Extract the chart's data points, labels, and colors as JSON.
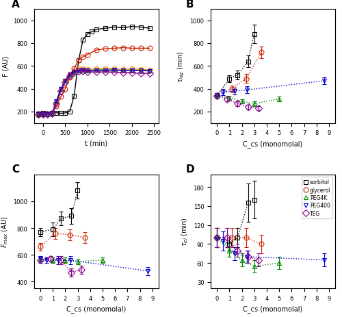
{
  "panel_A": {
    "title": "A",
    "xlabel": "t (min)",
    "ylabel": "F (AU)",
    "xlim": [
      -200,
      2600
    ],
    "ylim": [
      100,
      1100
    ],
    "yticks": [
      200,
      400,
      600,
      800,
      1000
    ],
    "series": {
      "sorbitol": {
        "color": "#000000",
        "marker": "s",
        "t": [
          -100,
          0,
          100,
          200,
          300,
          400,
          500,
          600,
          700,
          800,
          900,
          1000,
          1100,
          1200,
          1400,
          1600,
          1800,
          2000,
          2200,
          2400
        ],
        "F": [
          180,
          185,
          183,
          185,
          190,
          185,
          188,
          200,
          340,
          650,
          830,
          880,
          900,
          920,
          930,
          940,
          935,
          945,
          940,
          930
        ]
      },
      "glycerol": {
        "color": "#cc2200",
        "marker": "o",
        "t": [
          -100,
          0,
          100,
          200,
          300,
          400,
          500,
          600,
          700,
          800,
          900,
          1000,
          1200,
          1400,
          1600,
          1800,
          2000,
          2200,
          2400
        ],
        "F": [
          170,
          175,
          175,
          180,
          250,
          330,
          400,
          500,
          580,
          650,
          680,
          700,
          740,
          750,
          755,
          760,
          755,
          755,
          755
        ]
      },
      "orange": {
        "color": "#ff8800",
        "marker": "h",
        "t": [
          -100,
          0,
          100,
          200,
          300,
          400,
          500,
          600,
          700,
          800,
          900,
          1000,
          1200,
          1400,
          1600,
          1800,
          2000,
          2200,
          2400
        ],
        "F": [
          175,
          175,
          175,
          180,
          280,
          390,
          470,
          530,
          560,
          575,
          580,
          570,
          575,
          575,
          575,
          570,
          575,
          570,
          565
        ]
      },
      "PEG4000": {
        "color": "#008800",
        "marker": "^",
        "t": [
          -100,
          0,
          100,
          200,
          300,
          400,
          500,
          600,
          700,
          800,
          900,
          1000,
          1200,
          1400,
          1600,
          1800,
          2000,
          2200,
          2400
        ],
        "F": [
          175,
          175,
          175,
          180,
          290,
          400,
          470,
          520,
          550,
          560,
          560,
          560,
          565,
          565,
          565,
          560,
          565,
          560,
          560
        ]
      },
      "PEG400": {
        "color": "#0000cc",
        "marker": "v",
        "t": [
          -100,
          0,
          100,
          200,
          300,
          400,
          500,
          600,
          700,
          800,
          900,
          1000,
          1200,
          1400,
          1600,
          1800,
          2000,
          2200,
          2400
        ],
        "F": [
          175,
          175,
          175,
          180,
          290,
          400,
          470,
          525,
          550,
          560,
          565,
          560,
          560,
          560,
          565,
          560,
          560,
          560,
          555
        ]
      },
      "TEG": {
        "color": "#880088",
        "marker": "D",
        "t": [
          -100,
          0,
          100,
          200,
          300,
          400,
          500,
          600,
          700,
          800,
          900,
          1000,
          1200,
          1400,
          1600,
          1800,
          2000,
          2200,
          2400
        ],
        "F": [
          175,
          175,
          175,
          180,
          270,
          380,
          460,
          510,
          540,
          555,
          555,
          550,
          545,
          548,
          545,
          540,
          540,
          535,
          535
        ]
      }
    }
  },
  "panel_B": {
    "title": "B",
    "xlabel": "C_cs (monomolal)",
    "ylabel": "τ_lag (min)",
    "xlim": [
      -0.5,
      9.5
    ],
    "ylim": [
      100,
      1100
    ],
    "yticks": [
      200,
      400,
      600,
      800,
      1000
    ],
    "xticks": [
      0,
      1,
      2,
      3,
      4,
      5,
      6,
      7,
      8,
      9
    ],
    "series": {
      "sorbitol": {
        "color": "#000000",
        "marker": "s",
        "x": [
          0,
          1,
          1.66,
          2.49,
          2.99
        ],
        "y": [
          340,
          490,
          520,
          640,
          880
        ],
        "yerr": [
          20,
          30,
          40,
          50,
          80
        ]
      },
      "glycerol": {
        "color": "#cc2200",
        "marker": "o",
        "x": [
          0,
          1.19,
          2.37,
          3.56
        ],
        "y": [
          340,
          400,
          490,
          720
        ],
        "yerr": [
          20,
          30,
          40,
          50
        ]
      },
      "PEG4000": {
        "color": "#008800",
        "marker": "^",
        "x": [
          0,
          1,
          2,
          3,
          5
        ],
        "y": [
          340,
          320,
          290,
          270,
          310
        ],
        "yerr": [
          20,
          20,
          20,
          20,
          20
        ]
      },
      "PEG400": {
        "color": "#0000cc",
        "marker": "v",
        "x": [
          0,
          0.48,
          1.44,
          2.4,
          8.64
        ],
        "y": [
          340,
          370,
          380,
          390,
          470
        ],
        "yerr": [
          20,
          25,
          30,
          30,
          30
        ]
      },
      "TEG": {
        "color": "#880088",
        "marker": "D",
        "x": [
          0,
          0.83,
          1.66,
          2.49,
          3.32
        ],
        "y": [
          340,
          310,
          270,
          240,
          230
        ],
        "yerr": [
          20,
          20,
          20,
          20,
          20
        ]
      }
    }
  },
  "panel_C": {
    "title": "C",
    "xlabel": "C_cs (monomolal)",
    "ylabel": "F_max (AU)",
    "xlim": [
      -0.5,
      9.5
    ],
    "ylim": [
      350,
      1200
    ],
    "yticks": [
      400,
      600,
      800,
      1000
    ],
    "xticks": [
      0,
      1,
      2,
      3,
      4,
      5,
      6,
      7,
      8,
      9
    ],
    "series": {
      "sorbitol": {
        "color": "#000000",
        "marker": "s",
        "x": [
          0,
          1,
          1.66,
          2.49,
          2.99
        ],
        "y": [
          770,
          790,
          870,
          890,
          1080
        ],
        "yerr": [
          30,
          50,
          50,
          60,
          60
        ]
      },
      "glycerol": {
        "color": "#cc2200",
        "marker": "o",
        "x": [
          0,
          1.19,
          2.37,
          3.56
        ],
        "y": [
          660,
          760,
          750,
          730
        ],
        "yerr": [
          30,
          40,
          40,
          40
        ]
      },
      "PEG4000": {
        "color": "#008800",
        "marker": "^",
        "x": [
          0,
          1,
          2,
          3,
          5
        ],
        "y": [
          570,
          560,
          560,
          550,
          560
        ],
        "yerr": [
          20,
          20,
          20,
          20,
          20
        ]
      },
      "PEG400": {
        "color": "#0000cc",
        "marker": "v",
        "x": [
          0,
          0.48,
          1.44,
          2.4,
          8.64
        ],
        "y": [
          570,
          560,
          560,
          560,
          480
        ],
        "yerr": [
          20,
          20,
          30,
          30,
          30
        ]
      },
      "TEG": {
        "color": "#880088",
        "marker": "D",
        "x": [
          0,
          0.83,
          1.66,
          2.49,
          3.32
        ],
        "y": [
          560,
          570,
          560,
          470,
          490
        ],
        "yerr": [
          20,
          20,
          30,
          30,
          30
        ]
      }
    }
  },
  "panel_D": {
    "title": "D",
    "xlabel": "C_cs (monomolal)",
    "ylabel": "τ_el (min)",
    "xlim": [
      -0.5,
      9.5
    ],
    "ylim": [
      20,
      200
    ],
    "yticks": [
      30,
      60,
      90,
      120,
      150,
      180
    ],
    "xticks": [
      0,
      1,
      2,
      3,
      4,
      5,
      6,
      7,
      8,
      9
    ],
    "series": {
      "sorbitol": {
        "color": "#000000",
        "marker": "s",
        "x": [
          0,
          1,
          1.66,
          2.49,
          2.99
        ],
        "y": [
          100,
          90,
          100,
          155,
          160
        ],
        "yerr": [
          15,
          10,
          15,
          30,
          30
        ]
      },
      "glycerol": {
        "color": "#cc2200",
        "marker": "o",
        "x": [
          0,
          1.19,
          2.37,
          3.56
        ],
        "y": [
          100,
          100,
          100,
          90
        ],
        "yerr": [
          15,
          15,
          15,
          15
        ]
      },
      "PEG4000": {
        "color": "#008800",
        "marker": "^",
        "x": [
          0,
          1,
          2,
          3,
          5
        ],
        "y": [
          100,
          80,
          65,
          55,
          60
        ],
        "yerr": [
          15,
          10,
          10,
          10,
          10
        ]
      },
      "PEG400": {
        "color": "#0000cc",
        "marker": "v",
        "x": [
          0,
          0.48,
          1.44,
          2.4,
          8.64
        ],
        "y": [
          100,
          95,
          75,
          70,
          65
        ],
        "yerr": [
          15,
          15,
          10,
          10,
          10
        ]
      },
      "TEG": {
        "color": "#880088",
        "marker": "D",
        "x": [
          0,
          0.83,
          1.66,
          2.49,
          3.32
        ],
        "y": [
          100,
          100,
          80,
          70,
          65
        ],
        "yerr": [
          15,
          15,
          10,
          10,
          10
        ]
      }
    }
  },
  "legend": {
    "sorbitol": {
      "color": "#000000",
      "marker": "s",
      "label": "sorbitol"
    },
    "glycerol": {
      "color": "#cc2200",
      "marker": "o",
      "label": "glycerol"
    },
    "PEG4K": {
      "color": "#008800",
      "marker": "^",
      "label": "PEG4K"
    },
    "PEG400": {
      "color": "#0000cc",
      "marker": "v",
      "label": "PEG400"
    },
    "TEG": {
      "color": "#880088",
      "marker": "D",
      "label": "TEG"
    }
  },
  "background_color": "#ffffff",
  "markersize": 5,
  "linewidth": 1.0
}
